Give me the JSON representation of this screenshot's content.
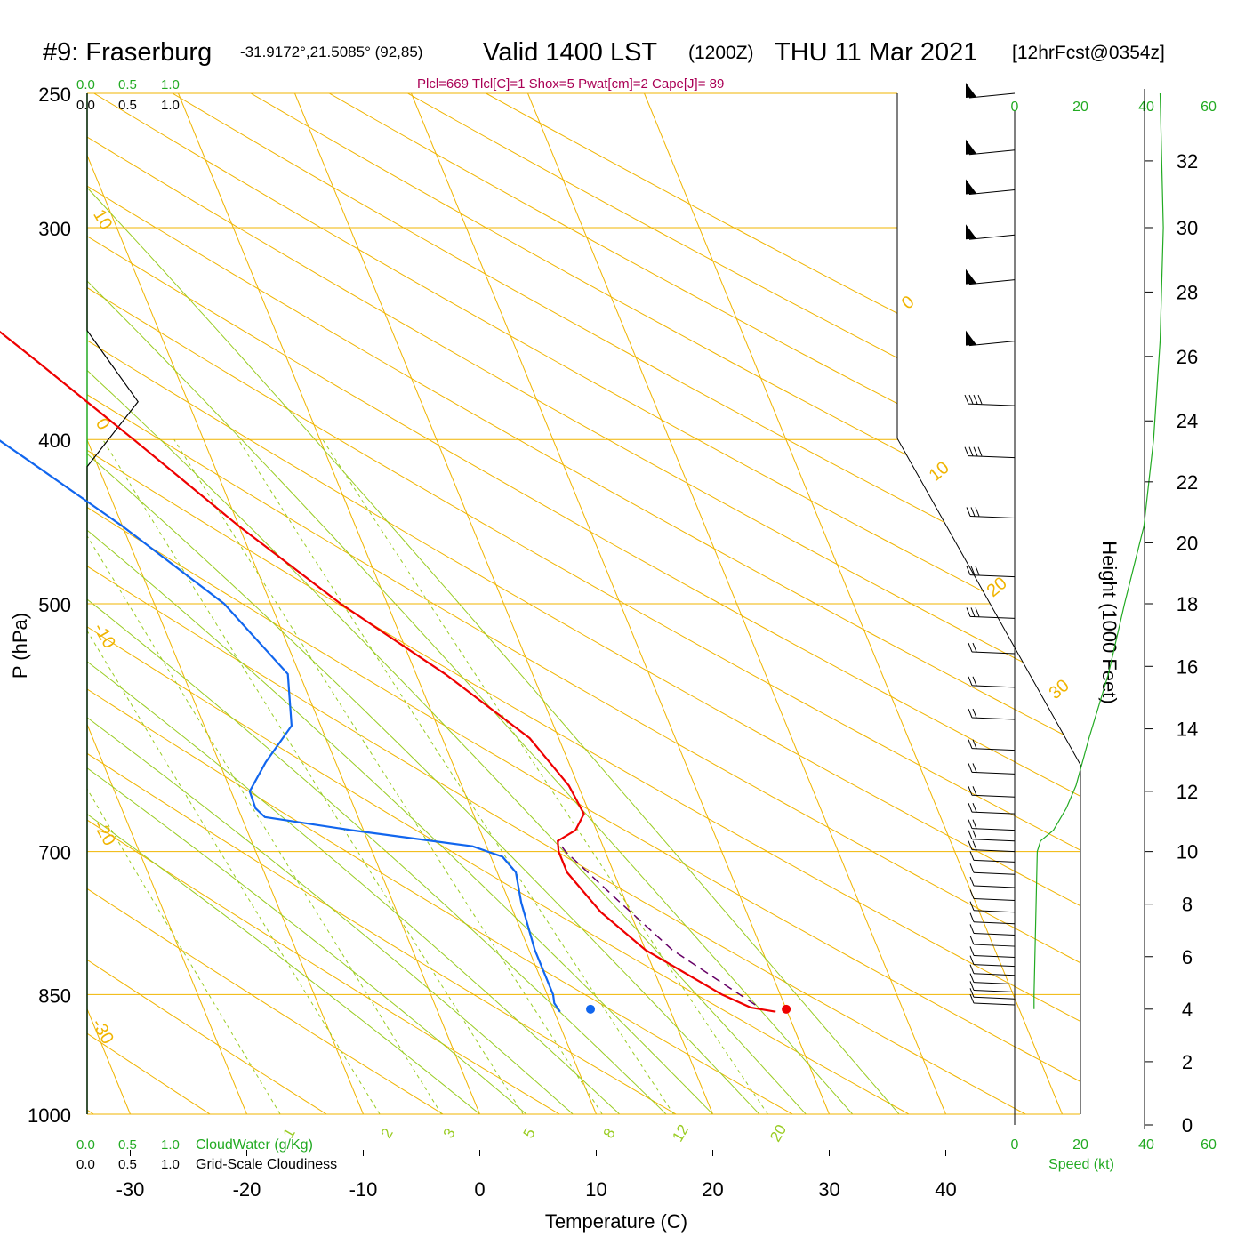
{
  "header": {
    "station": "#9: Fraserburg",
    "coords": "-31.9172°,21.5085° (92,85)",
    "valid_main": "Valid 1400 LST",
    "valid_z": "(1200Z)",
    "date": "THU 11 Mar 2021",
    "forecast": "[12hrFcst@0354z]"
  },
  "indices": "Plcl=669 Tlcl[C]=1 Shox=5 Pwat[cm]=2 Cape[J]= 89",
  "cloud": {
    "top_green": [
      "0.0",
      "0.5",
      "1.0"
    ],
    "top_black": [
      "0.0",
      "0.5",
      "1.0"
    ],
    "bottom_green": [
      "0.0",
      "0.5",
      "1.0"
    ],
    "bottom_black": [
      "0.0",
      "0.5",
      "1.0"
    ],
    "cloudwater_label": "CloudWater (g/Kg)",
    "cloudiness_label": "Grid-Scale Cloudiness"
  },
  "wind_scale": {
    "ticks": [
      "0",
      "20",
      "40",
      "60"
    ],
    "xlabel": "Speed (kt)"
  },
  "colors": {
    "temperature": "#ee0000",
    "dewpoint": "#1166ee",
    "isotherm": "#f0b400",
    "dry_adiabat": "#f0b400",
    "moist_adiabat": "#99cc22",
    "mixing_ratio": "#99cc22",
    "parcel": "#660066",
    "index_text": "#aa0055",
    "wind_speed": "#22aa22"
  },
  "chart_data": {
    "type": "skew-t",
    "xlabel": "Temperature (C)",
    "ylabel": "P (hPa)",
    "y2label": "Height (1000 Feet)",
    "xticks": [
      -30,
      -20,
      -10,
      0,
      10,
      20,
      30,
      40
    ],
    "pressure_ticks": [
      250,
      300,
      400,
      500,
      700,
      850,
      1000
    ],
    "height_ticks": [
      0,
      2,
      4,
      6,
      8,
      10,
      12,
      14,
      16,
      18,
      20,
      22,
      24,
      26,
      28,
      30,
      32
    ],
    "isotherm_labels": [
      "10",
      "0",
      "-10",
      "-20",
      "-30",
      "0",
      "10",
      "20",
      "30"
    ],
    "moist_labels": [
      "1",
      "2",
      "3",
      "5",
      "8",
      "12",
      "20"
    ],
    "temperature": [
      {
        "p": 870,
        "t": 29
      },
      {
        "p": 865,
        "t": 27
      },
      {
        "p": 850,
        "t": 25
      },
      {
        "p": 800,
        "t": 20
      },
      {
        "p": 760,
        "t": 17.5
      },
      {
        "p": 720,
        "t": 16
      },
      {
        "p": 700,
        "t": 16
      },
      {
        "p": 690,
        "t": 16.3
      },
      {
        "p": 680,
        "t": 18.2
      },
      {
        "p": 665,
        "t": 19.5
      },
      {
        "p": 640,
        "t": 19.2
      },
      {
        "p": 600,
        "t": 17.5
      },
      {
        "p": 550,
        "t": 12.5
      },
      {
        "p": 500,
        "t": 6
      },
      {
        "p": 450,
        "t": 0
      },
      {
        "p": 400,
        "t": -6
      },
      {
        "p": 360,
        "t": -11.5
      },
      {
        "p": 325,
        "t": -17
      },
      {
        "p": 300,
        "t": -21.5
      },
      {
        "p": 270,
        "t": -28
      },
      {
        "p": 250,
        "t": -32.5
      }
    ],
    "dewpoint": [
      {
        "p": 870,
        "t": 10.5
      },
      {
        "p": 860,
        "t": 10.3
      },
      {
        "p": 850,
        "t": 10.5
      },
      {
        "p": 800,
        "t": 10.5
      },
      {
        "p": 750,
        "t": 11
      },
      {
        "p": 720,
        "t": 11.6
      },
      {
        "p": 705,
        "t": 11
      },
      {
        "p": 695,
        "t": 8.8
      },
      {
        "p": 680,
        "t": -1
      },
      {
        "p": 668,
        "t": -8
      },
      {
        "p": 660,
        "t": -8.5
      },
      {
        "p": 645,
        "t": -8.4
      },
      {
        "p": 620,
        "t": -6
      },
      {
        "p": 590,
        "t": -2.5
      },
      {
        "p": 550,
        "t": -1
      },
      {
        "p": 500,
        "t": -4
      },
      {
        "p": 450,
        "t": -10
      },
      {
        "p": 410,
        "t": -16
      },
      {
        "p": 380,
        "t": -21
      },
      {
        "p": 350,
        "t": -29
      },
      {
        "p": 310,
        "t": -38
      },
      {
        "p": 280,
        "t": -45
      },
      {
        "p": 250,
        "t": -52
      }
    ],
    "parcel": [
      {
        "p": 862,
        "t": 27.5
      },
      {
        "p": 800,
        "t": 22.3
      },
      {
        "p": 750,
        "t": 19.5
      },
      {
        "p": 700,
        "t": 16.6
      },
      {
        "p": 690,
        "t": 16.3
      }
    ],
    "surface_temp": {
      "p": 867,
      "t": 30
    },
    "surface_dewpoint": {
      "p": 867,
      "t": 13.2
    },
    "cloudiness_profile": [
      {
        "p": 250,
        "v": 0
      },
      {
        "p": 345,
        "v": 0
      },
      {
        "p": 380,
        "v": 0.45
      },
      {
        "p": 415,
        "v": 0
      },
      {
        "p": 1000,
        "v": 0
      }
    ],
    "height_profile": [
      {
        "z": 0,
        "p": 1000
      },
      {
        "z": 4,
        "p": 867
      },
      {
        "z": 10,
        "p": 700
      },
      {
        "z": 12,
        "p": 645
      },
      {
        "z": 18,
        "p": 500
      },
      {
        "z": 24,
        "p": 390
      },
      {
        "z": 30,
        "p": 300
      },
      {
        "z": 32,
        "p": 274
      }
    ],
    "wind_speed_profile": [
      {
        "p": 867,
        "s": 6
      },
      {
        "p": 850,
        "s": 6
      },
      {
        "p": 700,
        "s": 7
      },
      {
        "p": 690,
        "s": 8
      },
      {
        "p": 680,
        "s": 12
      },
      {
        "p": 660,
        "s": 16
      },
      {
        "p": 640,
        "s": 19
      },
      {
        "p": 600,
        "s": 23
      },
      {
        "p": 550,
        "s": 29
      },
      {
        "p": 500,
        "s": 34
      },
      {
        "p": 450,
        "s": 40
      },
      {
        "p": 400,
        "s": 43
      },
      {
        "p": 350,
        "s": 45
      },
      {
        "p": 300,
        "s": 46
      },
      {
        "p": 250,
        "s": 45
      }
    ],
    "wind_barbs": [
      {
        "p": 250,
        "flags": 1
      },
      {
        "p": 270,
        "flags": 1
      },
      {
        "p": 285,
        "flags": 1
      },
      {
        "p": 303,
        "flags": 1
      },
      {
        "p": 322,
        "flags": 1
      },
      {
        "p": 350,
        "flags": 1
      },
      {
        "p": 382,
        "barbs": 4
      },
      {
        "p": 410,
        "barbs": 4
      },
      {
        "p": 445,
        "barbs": 3
      },
      {
        "p": 482,
        "barbs": 3
      },
      {
        "p": 510,
        "barbs": 3
      },
      {
        "p": 535,
        "barbs": 2
      },
      {
        "p": 560,
        "barbs": 2
      },
      {
        "p": 585,
        "barbs": 2
      },
      {
        "p": 610,
        "barbs": 2
      },
      {
        "p": 630,
        "barbs": 2
      },
      {
        "p": 650,
        "barbs": 2
      },
      {
        "p": 665,
        "barbs": 2
      },
      {
        "p": 680,
        "barbs": 2
      },
      {
        "p": 690,
        "barbs": 2
      },
      {
        "p": 700,
        "barbs": 2
      },
      {
        "p": 710,
        "barbs": 1
      },
      {
        "p": 722,
        "barbs": 1
      },
      {
        "p": 735,
        "barbs": 1
      },
      {
        "p": 748,
        "barbs": 1
      },
      {
        "p": 760,
        "barbs": 1
      },
      {
        "p": 772,
        "barbs": 1
      },
      {
        "p": 784,
        "barbs": 1
      },
      {
        "p": 796,
        "barbs": 1
      },
      {
        "p": 808,
        "barbs": 1
      },
      {
        "p": 818,
        "barbs": 1
      },
      {
        "p": 828,
        "barbs": 1
      },
      {
        "p": 838,
        "barbs": 1
      },
      {
        "p": 847,
        "barbs": 1
      },
      {
        "p": 855,
        "barbs": 1
      },
      {
        "p": 862,
        "barbs": 1
      }
    ]
  }
}
